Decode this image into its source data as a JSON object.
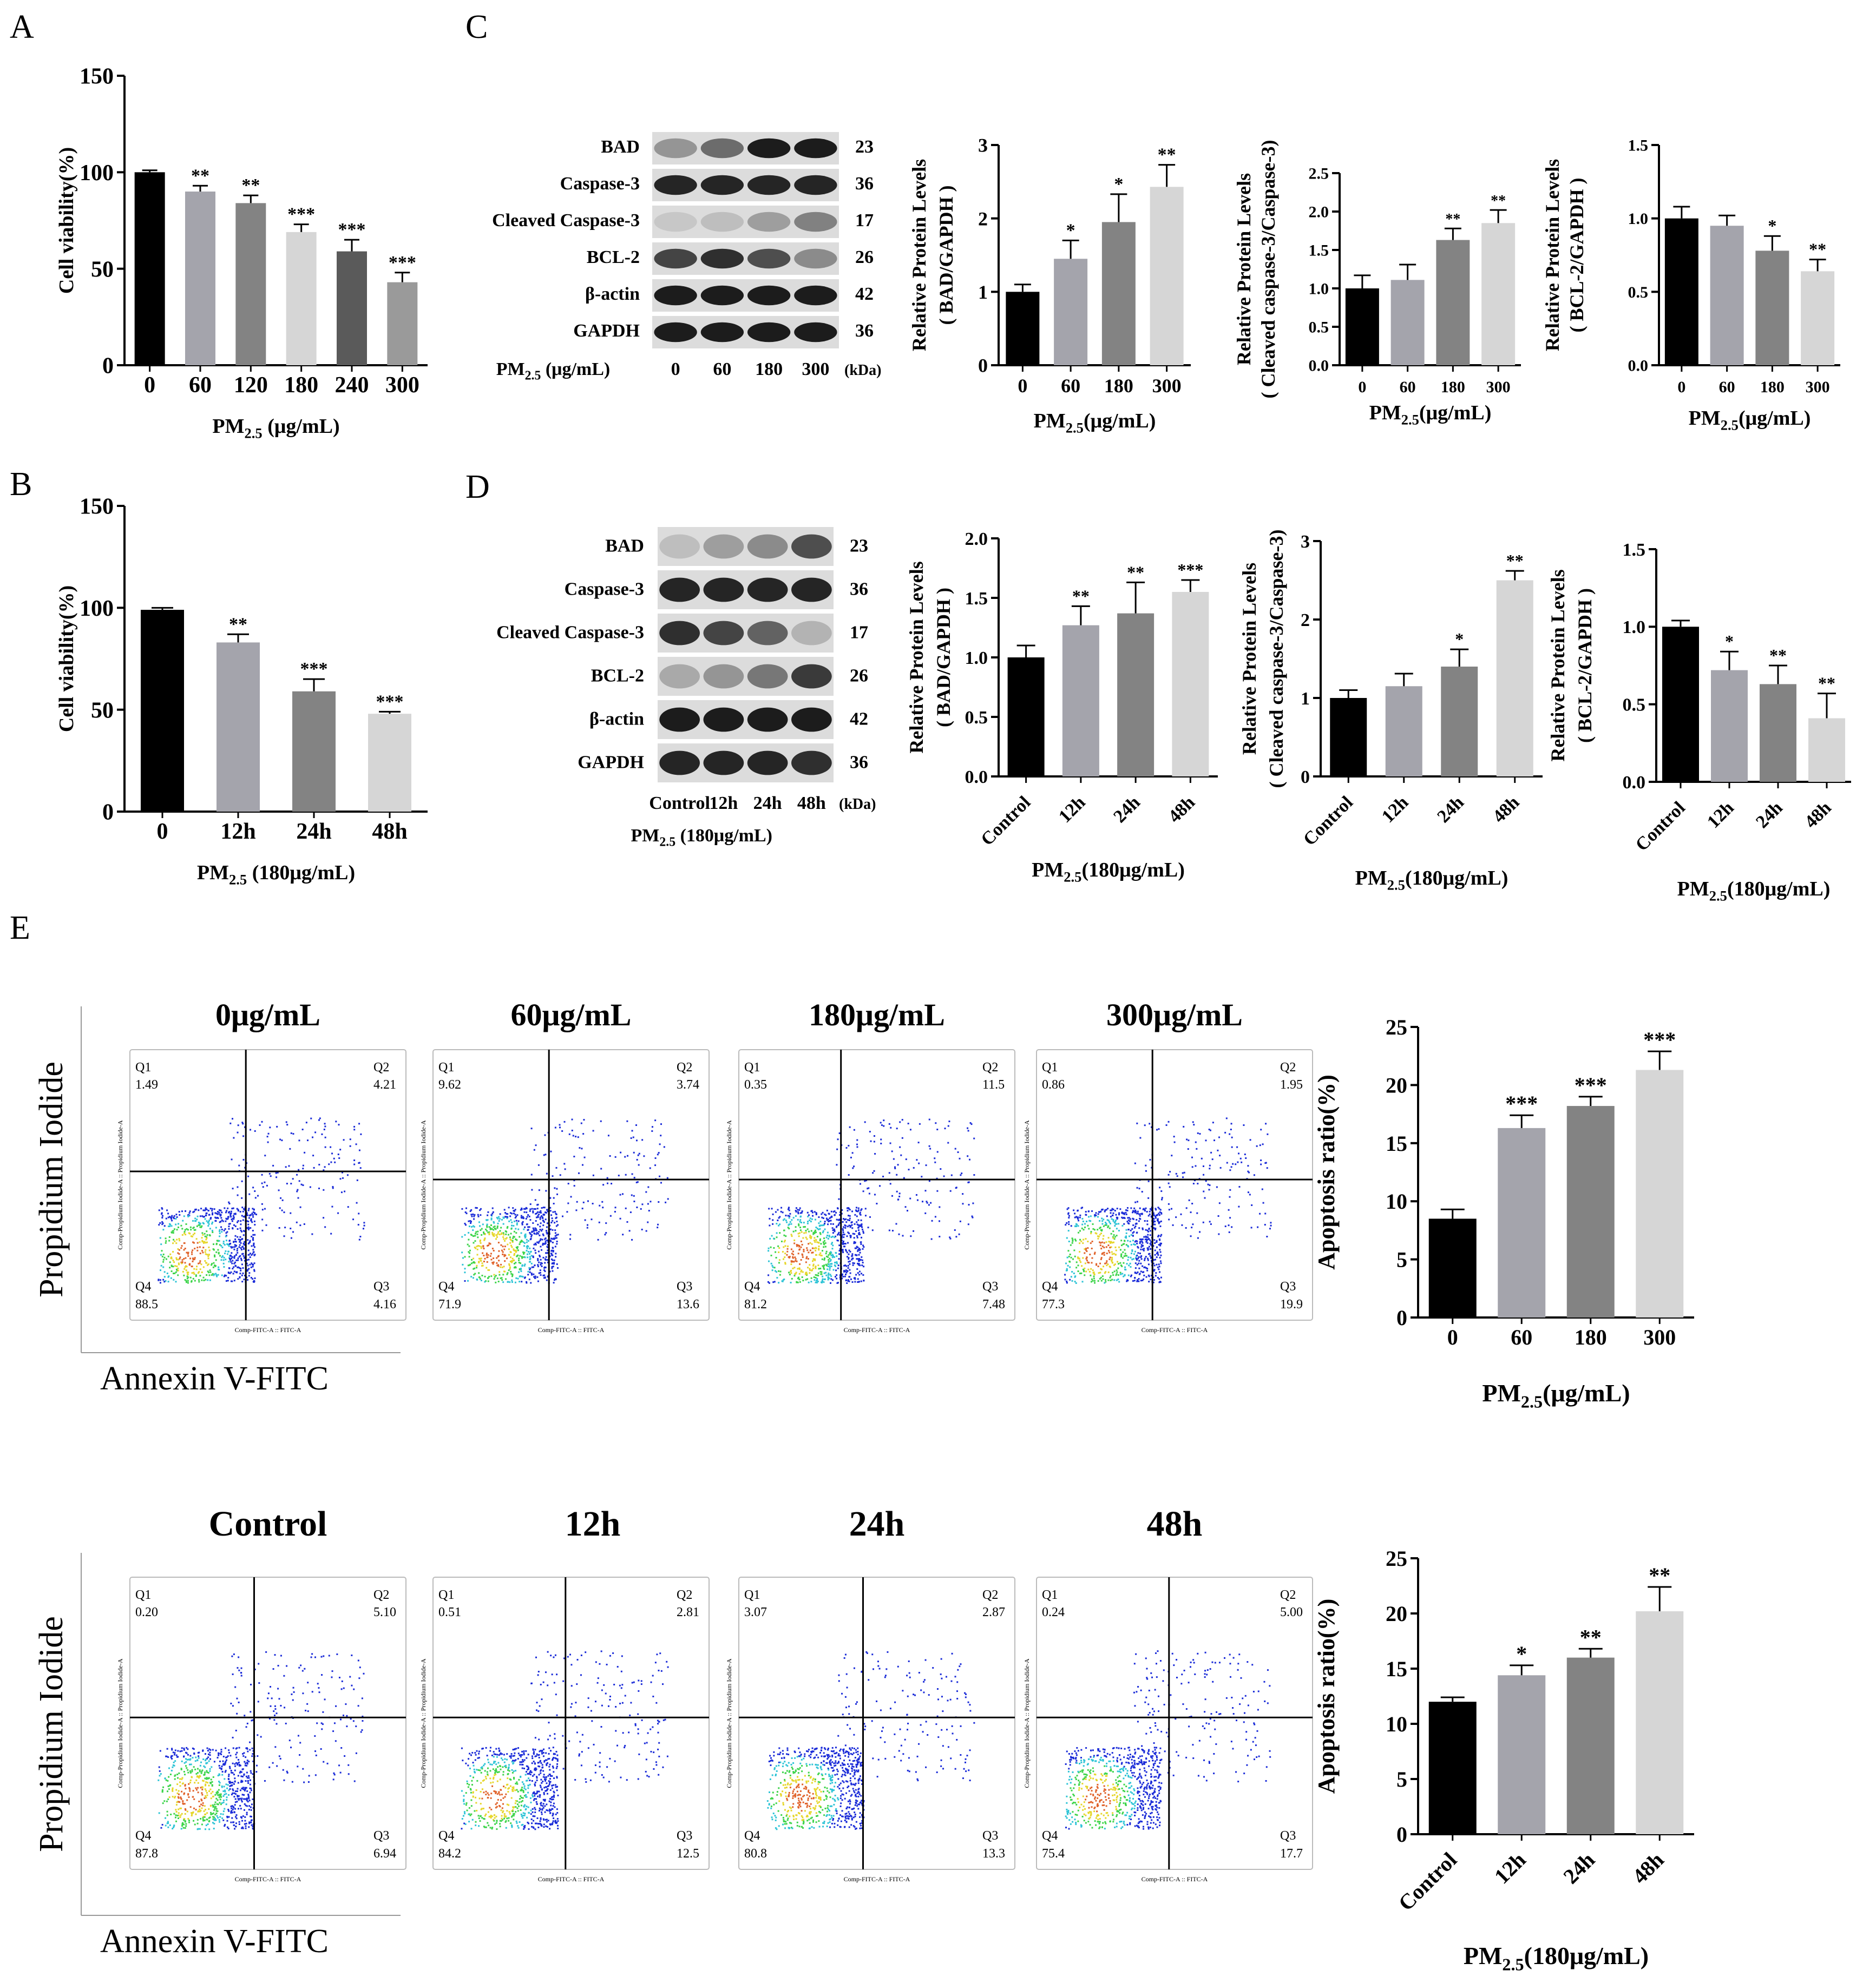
{
  "panel_labels": {
    "A": "A",
    "B": "B",
    "C": "C",
    "D": "D",
    "E": "E"
  },
  "colors": {
    "black": "#000000",
    "gray1": "#a4a4ac",
    "gray2": "#838383",
    "gray3": "#d6d6d6",
    "gray4": "#5a5a5a",
    "gray5": "#9a9a9a"
  },
  "chart_data": [
    {
      "id": "A",
      "type": "bar",
      "categories": [
        "0",
        "60",
        "120",
        "180",
        "240",
        "300"
      ],
      "values": [
        100,
        90,
        84,
        69,
        59,
        43
      ],
      "errors": [
        1,
        3,
        4,
        4,
        6,
        5
      ],
      "sig": [
        "",
        "**",
        "**",
        "***",
        "***",
        "***"
      ],
      "ylabel": "Cell viability(%)",
      "xlabel": "PM2.5 (μg/mL)",
      "ylim": [
        0,
        150
      ],
      "yticks": [
        "0",
        "50",
        "100",
        "150"
      ]
    },
    {
      "id": "B",
      "type": "bar",
      "categories": [
        "0",
        "12h",
        "24h",
        "48h"
      ],
      "values": [
        99,
        83,
        59,
        48
      ],
      "errors": [
        1,
        4,
        6,
        1
      ],
      "sig": [
        "",
        "**",
        "***",
        "***"
      ],
      "ylabel": "Cell viability(%)",
      "xlabel": "PM2.5 (180μg/mL)",
      "ylim": [
        0,
        150
      ],
      "yticks": [
        "0",
        "50",
        "100",
        "150"
      ]
    },
    {
      "id": "C1",
      "type": "bar",
      "categories": [
        "0",
        "60",
        "180",
        "300"
      ],
      "values": [
        1.0,
        1.45,
        1.95,
        2.43
      ],
      "errors": [
        0.1,
        0.25,
        0.38,
        0.3
      ],
      "sig": [
        "",
        "*",
        "*",
        "**"
      ],
      "ylabel_line1": "Relative  Protein Levels",
      "ylabel_line2": "( BAD/GAPDH )",
      "xlabel": "PM2.5(μg/mL)",
      "ylim": [
        0,
        3
      ],
      "yticks": [
        "0",
        "1",
        "2",
        "3"
      ]
    },
    {
      "id": "C2",
      "type": "bar",
      "categories": [
        "0",
        "60",
        "180",
        "300"
      ],
      "values": [
        1.0,
        1.11,
        1.63,
        1.85
      ],
      "errors": [
        0.17,
        0.2,
        0.15,
        0.17
      ],
      "sig": [
        "",
        "",
        "**",
        "**"
      ],
      "ylabel_line1": "Relative  Protein Levels",
      "ylabel_line2": "( Cleaved caspase-3/Caspase-3)",
      "xlabel": "PM2.5(μg/mL)",
      "ylim": [
        0,
        2.5
      ],
      "yticks": [
        "0.0",
        "0.5",
        "1.0",
        "1.5",
        "2.0",
        "2.5"
      ]
    },
    {
      "id": "C3",
      "type": "bar",
      "categories": [
        "0",
        "60",
        "180",
        "300"
      ],
      "values": [
        1.0,
        0.95,
        0.78,
        0.64
      ],
      "errors": [
        0.08,
        0.07,
        0.1,
        0.08
      ],
      "sig": [
        "",
        "",
        "*",
        "**"
      ],
      "ylabel_line1": "Relative  Protein Levels",
      "ylabel_line2": "( BCL-2/GAPDH )",
      "xlabel": "PM2.5(μg/mL)",
      "ylim": [
        0,
        1.5
      ],
      "yticks": [
        "0.0",
        "0.5",
        "1.0",
        "1.5"
      ]
    },
    {
      "id": "D1",
      "type": "bar",
      "categories": [
        "Control",
        "12h",
        "24h",
        "48h"
      ],
      "values": [
        1.0,
        1.27,
        1.37,
        1.55
      ],
      "errors": [
        0.1,
        0.16,
        0.26,
        0.1
      ],
      "sig": [
        "",
        "**",
        "**",
        "***"
      ],
      "ylabel_line1": "Relative  Protein Levels",
      "ylabel_line2": "( BAD/GAPDH )",
      "xlabel": "PM2.5(180μg/mL)",
      "ylim": [
        0,
        2.0
      ],
      "yticks": [
        "0.0",
        "0.5",
        "1.0",
        "1.5",
        "2.0"
      ]
    },
    {
      "id": "D2",
      "type": "bar",
      "categories": [
        "Control",
        "12h",
        "24h",
        "48h"
      ],
      "values": [
        1.0,
        1.15,
        1.4,
        2.5
      ],
      "errors": [
        0.1,
        0.16,
        0.22,
        0.12
      ],
      "sig": [
        "",
        "",
        "*",
        "**"
      ],
      "ylabel_line1": "Relative  Protein Levels",
      "ylabel_line2": "( Cleaved caspase-3/Caspase-3)",
      "xlabel": "PM2.5(180μg/mL)",
      "ylim": [
        0,
        3
      ],
      "yticks": [
        "0",
        "1",
        "2",
        "3"
      ]
    },
    {
      "id": "D3",
      "type": "bar",
      "categories": [
        "Control",
        "12h",
        "24h",
        "48h"
      ],
      "values": [
        1.0,
        0.72,
        0.63,
        0.41
      ],
      "errors": [
        0.04,
        0.12,
        0.12,
        0.16
      ],
      "sig": [
        "",
        "*",
        "**",
        "**"
      ],
      "ylabel_line1": "Relative  Protein Levels",
      "ylabel_line2": "( BCL-2/GAPDH )",
      "xlabel": "PM2.5(180μg/mL)",
      "ylim": [
        0,
        1.5
      ],
      "yticks": [
        "0.0",
        "0.5",
        "1.0",
        "1.5"
      ]
    },
    {
      "id": "E1",
      "type": "bar",
      "categories": [
        "0",
        "60",
        "180",
        "300"
      ],
      "values": [
        8.5,
        16.3,
        18.2,
        21.3
      ],
      "errors": [
        0.8,
        1.1,
        0.8,
        1.6
      ],
      "sig": [
        "",
        "***",
        "***",
        "***"
      ],
      "ylabel": "Apoptosis ratio(%)",
      "xlabel": "PM2.5(μg/mL)",
      "ylim": [
        0,
        25
      ],
      "yticks": [
        "0",
        "5",
        "10",
        "15",
        "20",
        "25"
      ]
    },
    {
      "id": "E2",
      "type": "bar",
      "categories": [
        "Control",
        "12h",
        "24h",
        "48h"
      ],
      "values": [
        12.0,
        14.4,
        16.0,
        20.2
      ],
      "errors": [
        0.4,
        0.9,
        0.8,
        2.2
      ],
      "sig": [
        "",
        "*",
        "**",
        "**"
      ],
      "ylabel": "Apoptosis ratio(%)",
      "xlabel": "PM2.5(180μg/mL)",
      "ylim": [
        0,
        25
      ],
      "yticks": [
        "0",
        "5",
        "10",
        "15",
        "20",
        "25"
      ]
    }
  ],
  "blot_C": {
    "rows": [
      {
        "label": "BAD",
        "kda": "23"
      },
      {
        "label": "Caspase-3",
        "kda": "36"
      },
      {
        "label": "Cleaved Caspase-3",
        "kda": "17"
      },
      {
        "label": "BCL-2",
        "kda": "26"
      },
      {
        "label": "β-actin",
        "kda": "42"
      },
      {
        "label": "GAPDH",
        "kda": "36"
      }
    ],
    "x_prefix": "PM2.5  (μg/mL)",
    "lanes": [
      "0",
      "60",
      "180",
      "300"
    ],
    "unit": "(kDa)"
  },
  "blot_D": {
    "rows": [
      {
        "label": "BAD",
        "kda": "23"
      },
      {
        "label": "Caspase-3",
        "kda": "36"
      },
      {
        "label": "Cleaved Caspase-3",
        "kda": "17"
      },
      {
        "label": "BCL-2",
        "kda": "26"
      },
      {
        "label": "β-actin",
        "kda": "42"
      },
      {
        "label": "GAPDH",
        "kda": "36"
      }
    ],
    "lanes": [
      "Control",
      "12h",
      "24h",
      "48h"
    ],
    "unit": "(kDa)",
    "caption": "PM2.5  (180μg/mL)"
  },
  "flow_row1": {
    "titles": [
      "0μg/mL",
      "60μg/mL",
      "180μg/mL",
      "300μg/mL"
    ],
    "quads": [
      {
        "q1": "1.49",
        "q2": "4.21",
        "q3": "4.16",
        "q4": "88.5"
      },
      {
        "q1": "9.62",
        "q2": "3.74",
        "q3": "13.6",
        "q4": "71.9"
      },
      {
        "q1": "0.35",
        "q2": "11.5",
        "q3": "7.48",
        "q4": "81.2"
      },
      {
        "q1": "0.86",
        "q2": "1.95",
        "q3": "19.9",
        "q4": "77.3"
      }
    ]
  },
  "flow_row2": {
    "titles": [
      "Control",
      "12h",
      "24h",
      "48h"
    ],
    "quads": [
      {
        "q1": "0.20",
        "q2": "5.10",
        "q3": "6.94",
        "q4": "87.8"
      },
      {
        "q1": "0.51",
        "q2": "2.81",
        "q3": "12.5",
        "q4": "84.2"
      },
      {
        "q1": "3.07",
        "q2": "2.87",
        "q3": "13.3",
        "q4": "80.8"
      },
      {
        "q1": "0.24",
        "q2": "5.00",
        "q3": "17.7",
        "q4": "75.4"
      }
    ]
  },
  "flow_axes": {
    "y": "Propidium Iodide",
    "x": "Annexin V-FITC",
    "q_names": [
      "Q1",
      "Q2",
      "Q3",
      "Q4"
    ],
    "tiny_x": "Comp-FITC-A :: FITC-A",
    "tiny_y": "Comp-Propidium Iodide-A :: Propidium Iodide-A"
  }
}
